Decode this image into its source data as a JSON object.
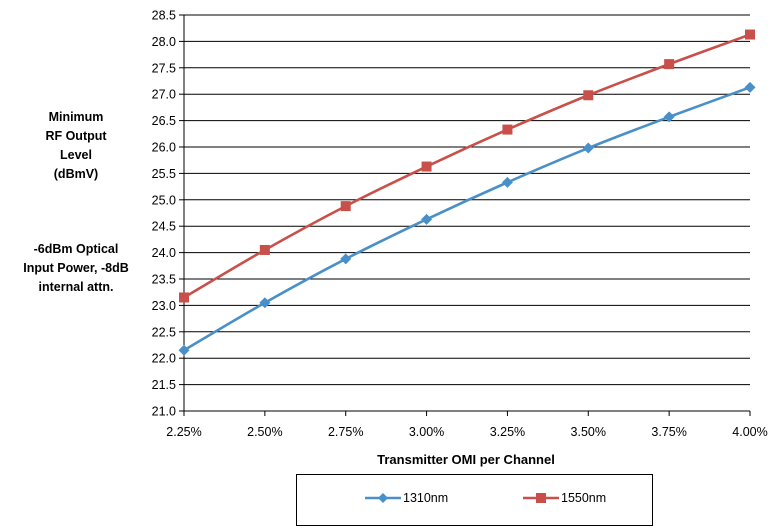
{
  "chart_data": {
    "type": "line",
    "x": [
      2.25,
      2.5,
      2.75,
      3.0,
      3.25,
      3.5,
      3.75,
      4.0
    ],
    "x_tick_labels": [
      "2.25%",
      "2.50%",
      "2.75%",
      "3.00%",
      "3.25%",
      "3.50%",
      "3.75%",
      "4.00%"
    ],
    "y_tick_labels": [
      "21.0",
      "21.5",
      "22.0",
      "22.5",
      "23.0",
      "23.5",
      "24.0",
      "24.5",
      "25.0",
      "25.5",
      "26.0",
      "26.5",
      "27.0",
      "27.5",
      "28.0",
      "28.5"
    ],
    "ylim": [
      21.0,
      28.5
    ],
    "y_step": 0.5,
    "xlabel": "Transmitter OMI per Channel",
    "ylabel_lines": [
      "Minimum",
      "RF Output",
      "Level",
      "(dBmV)"
    ],
    "annotation_lines": [
      "-6dBm Optical",
      "Input Power, -8dB",
      "internal attn."
    ],
    "grid": true,
    "legend_position": "bottom",
    "series": [
      {
        "name": "1310nm",
        "color": "#4a90c8",
        "marker": "diamond",
        "values": [
          22.15,
          23.05,
          23.88,
          24.63,
          25.33,
          25.98,
          26.57,
          27.13
        ]
      },
      {
        "name": "1550nm",
        "color": "#c9504a",
        "marker": "square",
        "values": [
          23.15,
          24.05,
          24.88,
          25.63,
          26.33,
          26.98,
          27.57,
          28.13
        ]
      }
    ]
  }
}
